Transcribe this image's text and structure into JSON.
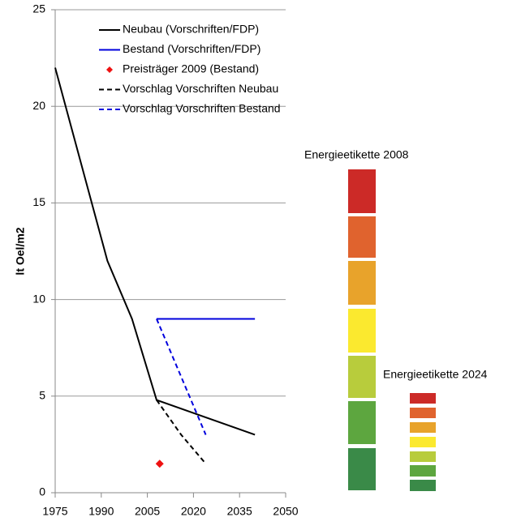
{
  "chart_data": {
    "type": "line",
    "ylabel": "lt Oel/m2",
    "xlim": [
      1975,
      2050
    ],
    "xticks": [
      1975,
      1990,
      2005,
      2020,
      2035,
      2050
    ],
    "ylim": [
      0,
      25
    ],
    "yticks": [
      0,
      5,
      10,
      15,
      20,
      25
    ],
    "grid": true,
    "series": [
      {
        "name": "Neubau (Vorschriften/FDP)",
        "type": "line",
        "color": "#000000",
        "dash": false,
        "x": [
          1975,
          1992,
          2000,
          2008,
          2040
        ],
        "values": [
          22,
          12,
          9,
          4.8,
          3
        ]
      },
      {
        "name": "Bestand (Vorschriften/FDP)",
        "type": "line",
        "color": "#0000dd",
        "dash": false,
        "x": [
          2008,
          2040
        ],
        "values": [
          9,
          9
        ]
      },
      {
        "name": "Preisträger 2009 (Bestand)",
        "type": "scatter",
        "color": "#ee1111",
        "x": [
          2009
        ],
        "values": [
          1.5
        ]
      },
      {
        "name": "Vorschlag Vorschriften Neubau",
        "type": "line",
        "color": "#000000",
        "dash": true,
        "x": [
          2008,
          2016,
          2024
        ],
        "values": [
          4.8,
          3,
          1.5
        ]
      },
      {
        "name": "Vorschlag Vorschriften Bestand",
        "type": "line",
        "color": "#0000dd",
        "dash": true,
        "x": [
          2008,
          2024
        ],
        "values": [
          9,
          3
        ]
      }
    ],
    "annotations": [
      "Energieetikette 2008",
      "Energieetikette 2024"
    ]
  }
}
